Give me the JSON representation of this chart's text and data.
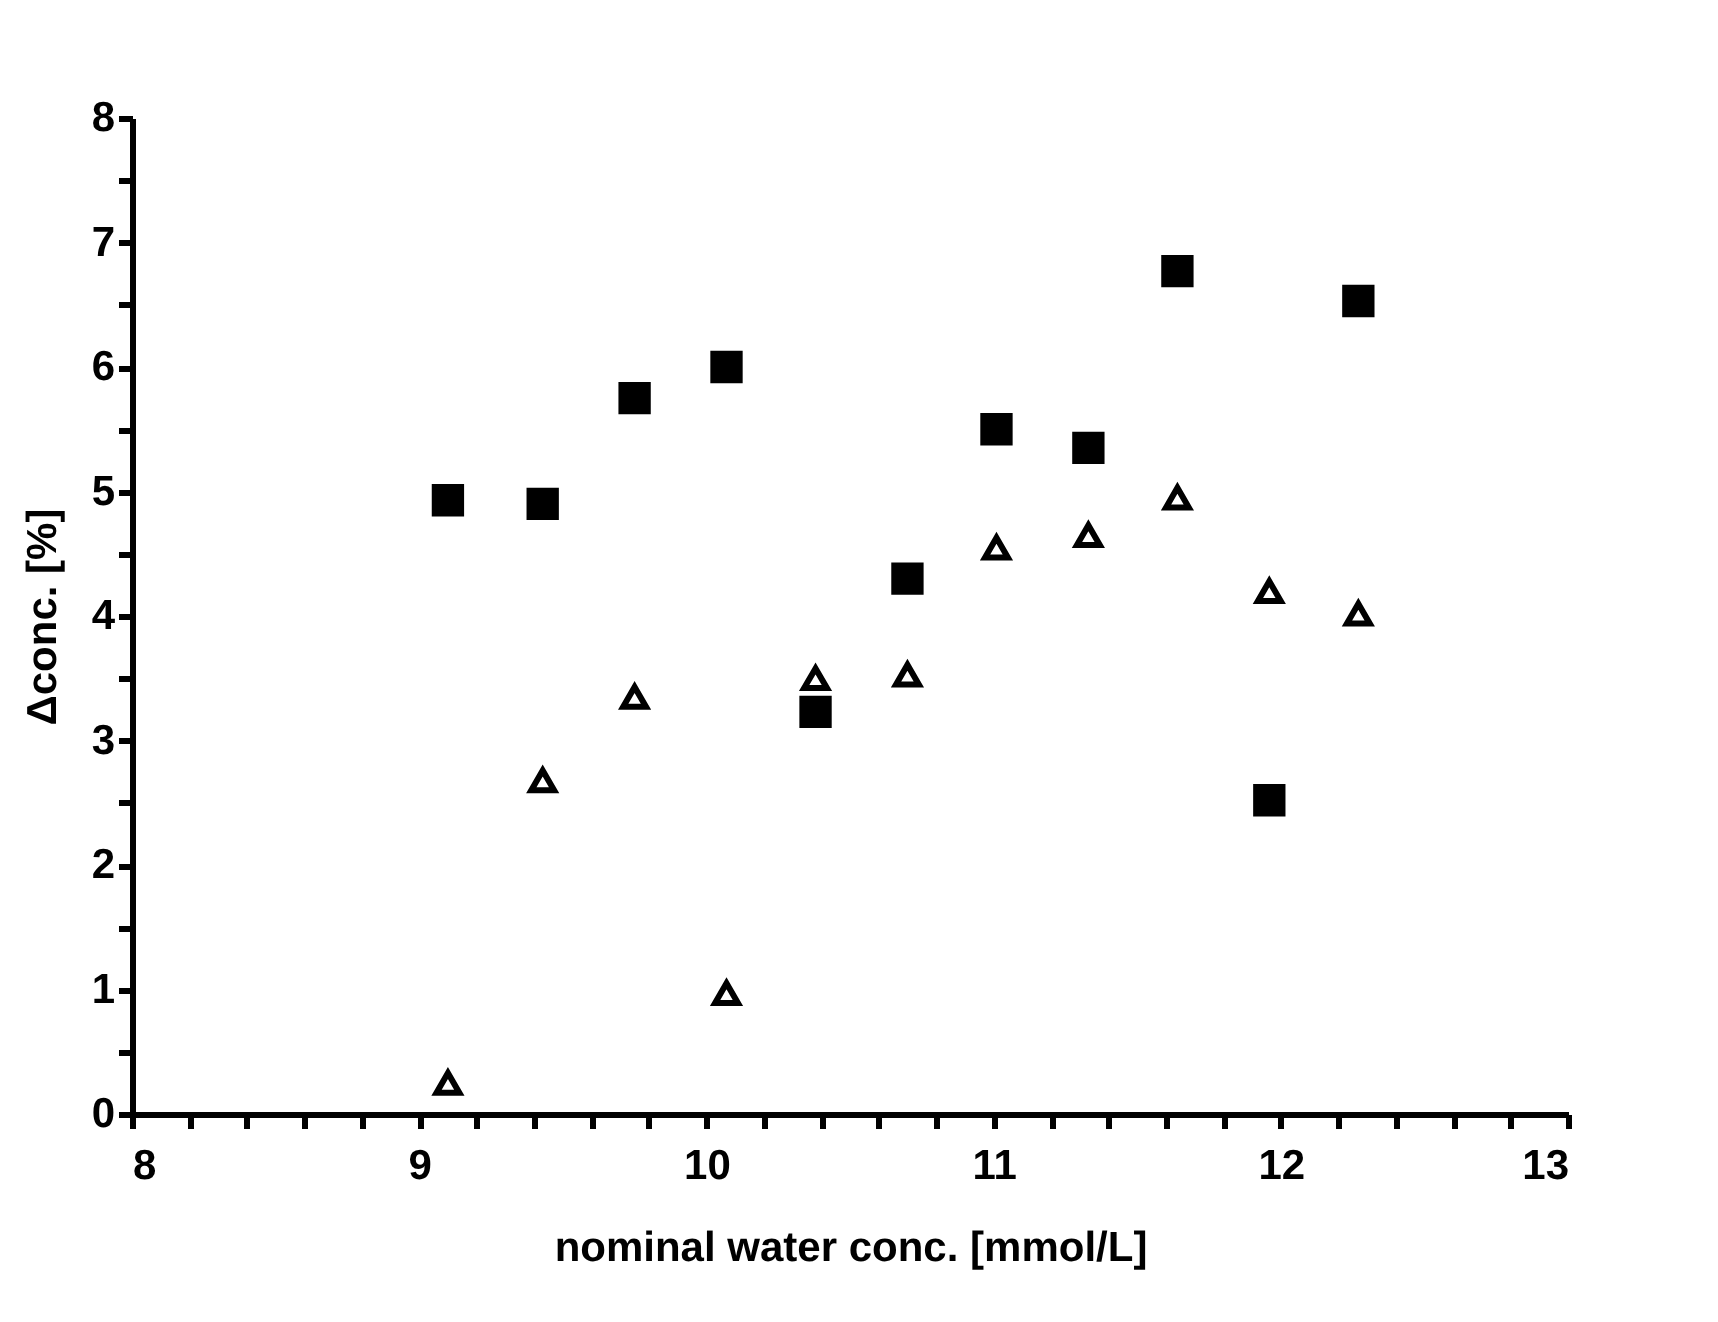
{
  "chart_data": {
    "type": "scatter",
    "xlabel": "nominal water conc. [mmol/L]",
    "ylabel": "Δconc. [%]",
    "x": [
      9.1,
      9.43,
      9.75,
      10.07,
      10.38,
      10.7,
      11.01,
      11.33,
      11.64,
      11.96,
      12.27
    ],
    "series": [
      {
        "color": "#000000",
        "marker": "square",
        "values": [
          4.93,
          4.9,
          5.75,
          6.0,
          3.23,
          4.3,
          5.5,
          5.35,
          6.77,
          2.52,
          6.53
        ]
      },
      {
        "color": "#000000",
        "marker": "triangle",
        "values": [
          0.25,
          2.68,
          3.35,
          0.97,
          3.5,
          3.53,
          4.55,
          4.65,
          4.95,
          4.2,
          4.02
        ]
      }
    ],
    "xlim": [
      8,
      13
    ],
    "xticks": [
      8,
      {
        "value": 8.2,
        "label": null
      },
      {
        "value": 8.4,
        "label": null
      },
      {
        "value": 8.6,
        "label": null
      },
      {
        "value": 8.8,
        "label": null
      },
      9,
      {
        "value": 9.2,
        "label": null
      },
      {
        "value": 9.4,
        "label": null
      },
      {
        "value": 9.6,
        "label": null
      },
      {
        "value": 9.8,
        "label": null
      },
      10,
      {
        "value": 10.2,
        "label": null
      },
      {
        "value": 10.4,
        "label": null
      },
      {
        "value": 10.6,
        "label": null
      },
      {
        "value": 10.8,
        "label": null
      },
      11,
      {
        "value": 11.2,
        "label": null
      },
      {
        "value": 11.4,
        "label": null
      },
      {
        "value": 11.6,
        "label": null
      },
      {
        "value": 11.8,
        "label": null
      },
      12,
      {
        "value": 12.2,
        "label": null
      },
      {
        "value": 12.4,
        "label": null
      },
      {
        "value": 12.6,
        "label": null
      },
      {
        "value": 12.8,
        "label": null
      },
      13
    ],
    "ylim": [
      0,
      8
    ],
    "yticks": [
      0,
      {
        "value": 0.5,
        "label": null
      },
      1,
      {
        "value": 1.5,
        "label": null
      },
      2,
      {
        "value": 2.5,
        "label": null
      },
      3,
      {
        "value": 3.5,
        "label": null
      },
      4,
      {
        "value": 4.5,
        "label": null
      },
      5,
      {
        "value": 5.5,
        "label": null
      },
      6,
      {
        "value": 6.5,
        "label": null
      },
      7,
      {
        "value": 7.5,
        "label": null
      },
      8
    ],
    "grid": false,
    "legend": false
  }
}
